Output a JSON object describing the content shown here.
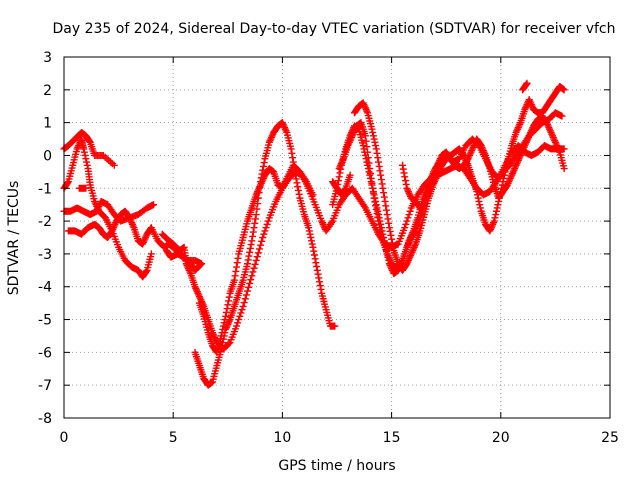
{
  "chart_data": {
    "type": "scatter",
    "title": "Day 235 of 2024, Sidereal Day-to-day VTEC variation (SDTVAR) for receiver vfch",
    "xlabel": "GPS time / hours",
    "ylabel": "SDTVAR / TECUs",
    "xlim": [
      0,
      25
    ],
    "ylim": [
      -8,
      3
    ],
    "xticks": [
      0,
      5,
      10,
      15,
      20,
      25
    ],
    "yticks": [
      -8,
      -7,
      -6,
      -5,
      -4,
      -3,
      -2,
      -1,
      0,
      1,
      2,
      3
    ],
    "grid": true,
    "marker": "plus",
    "color": "#ff0000",
    "tracks": [
      [
        [
          0.0,
          0.2
        ],
        [
          0.2,
          0.3
        ],
        [
          0.5,
          0.5
        ],
        [
          0.8,
          0.7
        ],
        [
          1.0,
          0.6
        ],
        [
          1.2,
          0.4
        ],
        [
          1.4,
          0.0
        ],
        [
          1.8,
          0.0
        ],
        [
          2.3,
          -0.3
        ]
      ],
      [
        [
          0.0,
          -1.0
        ],
        [
          0.2,
          -0.8
        ],
        [
          0.4,
          -0.3
        ],
        [
          0.6,
          0.2
        ],
        [
          0.8,
          0.5
        ],
        [
          0.9,
          0.2
        ],
        [
          1.1,
          -0.4
        ],
        [
          1.2,
          -0.9
        ],
        [
          1.4,
          -1.4
        ],
        [
          1.6,
          -1.7
        ],
        [
          1.9,
          -1.9
        ],
        [
          2.2,
          -2.3
        ],
        [
          2.5,
          -2.8
        ],
        [
          2.8,
          -3.2
        ],
        [
          3.1,
          -3.4
        ],
        [
          3.4,
          -3.5
        ],
        [
          3.6,
          -3.7
        ],
        [
          3.8,
          -3.5
        ],
        [
          4.0,
          -3.0
        ]
      ],
      [
        [
          0.0,
          -1.7
        ],
        [
          0.3,
          -1.7
        ],
        [
          0.6,
          -1.6
        ],
        [
          0.9,
          -1.7
        ],
        [
          1.2,
          -1.8
        ],
        [
          1.5,
          -1.7
        ],
        [
          1.7,
          -1.4
        ],
        [
          2.0,
          -1.5
        ],
        [
          2.3,
          -1.8
        ],
        [
          2.6,
          -2.0
        ],
        [
          3.0,
          -1.9
        ],
        [
          3.4,
          -1.8
        ],
        [
          3.8,
          -1.6
        ],
        [
          4.1,
          -1.5
        ]
      ],
      [
        [
          0.2,
          -2.3
        ],
        [
          0.5,
          -2.3
        ],
        [
          0.8,
          -2.4
        ],
        [
          1.1,
          -2.2
        ],
        [
          1.4,
          -2.1
        ],
        [
          1.6,
          -2.2
        ],
        [
          1.8,
          -2.4
        ],
        [
          2.0,
          -2.5
        ],
        [
          2.2,
          -2.3
        ],
        [
          2.4,
          -2.0
        ],
        [
          2.6,
          -1.8
        ],
        [
          2.8,
          -1.7
        ],
        [
          3.0,
          -1.9
        ],
        [
          3.2,
          -2.2
        ],
        [
          3.4,
          -2.6
        ],
        [
          3.6,
          -2.7
        ],
        [
          3.8,
          -2.4
        ],
        [
          4.0,
          -2.2
        ],
        [
          4.3,
          -2.6
        ],
        [
          4.6,
          -2.8
        ],
        [
          4.8,
          -2.7
        ],
        [
          5.0,
          -2.8
        ],
        [
          5.3,
          -3.0
        ],
        [
          5.6,
          -3.2
        ],
        [
          6.0,
          -3.2
        ],
        [
          6.3,
          -3.3
        ],
        [
          6.0,
          -3.5
        ],
        [
          5.8,
          -3.3
        ],
        [
          5.5,
          -3.1
        ],
        [
          5.2,
          -3.0
        ],
        [
          4.9,
          -3.1
        ],
        [
          4.7,
          -2.9
        ]
      ],
      [
        [
          4.5,
          -2.4
        ],
        [
          4.8,
          -2.6
        ],
        [
          5.0,
          -2.7
        ],
        [
          5.3,
          -2.9
        ],
        [
          5.5,
          -2.8
        ],
        [
          5.6,
          -3.3
        ],
        [
          5.8,
          -3.6
        ],
        [
          6.0,
          -4.0
        ],
        [
          6.2,
          -4.3
        ],
        [
          6.4,
          -4.6
        ],
        [
          6.6,
          -5.0
        ],
        [
          6.8,
          -5.4
        ],
        [
          7.0,
          -5.7
        ],
        [
          7.3,
          -5.9
        ],
        [
          7.6,
          -5.7
        ],
        [
          7.9,
          -5.2
        ],
        [
          8.2,
          -4.6
        ],
        [
          8.5,
          -3.9
        ],
        [
          8.8,
          -3.2
        ],
        [
          9.1,
          -2.5
        ],
        [
          9.4,
          -1.9
        ],
        [
          9.7,
          -1.4
        ],
        [
          10.0,
          -1.0
        ],
        [
          10.3,
          -0.7
        ],
        [
          10.6,
          -0.5
        ],
        [
          10.9,
          -0.6
        ],
        [
          11.2,
          -1.0
        ],
        [
          11.5,
          -1.5
        ],
        [
          11.8,
          -2.0
        ],
        [
          12.0,
          -2.3
        ],
        [
          12.3,
          -2.0
        ],
        [
          12.6,
          -1.5
        ],
        [
          12.9,
          -1.2
        ],
        [
          13.2,
          -1.0
        ],
        [
          13.5,
          -1.3
        ],
        [
          13.8,
          -1.6
        ],
        [
          14.1,
          -2.0
        ],
        [
          14.4,
          -2.4
        ],
        [
          14.7,
          -2.7
        ],
        [
          15.0,
          -2.8
        ],
        [
          15.3,
          -2.7
        ],
        [
          15.6,
          -2.2
        ],
        [
          15.9,
          -1.6
        ],
        [
          16.2,
          -1.2
        ],
        [
          16.5,
          -0.9
        ],
        [
          16.8,
          -0.7
        ],
        [
          17.1,
          -0.6
        ],
        [
          17.4,
          -0.5
        ],
        [
          17.7,
          -0.4
        ],
        [
          18.0,
          -0.3
        ],
        [
          18.3,
          -0.4
        ],
        [
          18.6,
          -0.7
        ],
        [
          18.9,
          -1.0
        ],
        [
          19.2,
          -1.2
        ],
        [
          19.5,
          -1.1
        ],
        [
          19.8,
          -0.8
        ],
        [
          20.1,
          -0.5
        ],
        [
          20.4,
          -0.3
        ],
        [
          20.7,
          0.0
        ],
        [
          21.0,
          0.3
        ],
        [
          21.3,
          0.6
        ],
        [
          21.6,
          0.8
        ],
        [
          21.9,
          1.0
        ],
        [
          22.2,
          1.1
        ],
        [
          22.5,
          1.3
        ],
        [
          22.8,
          1.2
        ]
      ],
      [
        [
          6.0,
          -6.0
        ],
        [
          6.2,
          -6.4
        ],
        [
          6.4,
          -6.8
        ],
        [
          6.6,
          -7.0
        ],
        [
          6.8,
          -6.9
        ],
        [
          7.0,
          -6.4
        ],
        [
          7.2,
          -5.9
        ],
        [
          7.4,
          -5.3
        ],
        [
          7.6,
          -5.0
        ],
        [
          7.8,
          -4.6
        ],
        [
          8.0,
          -4.2
        ],
        [
          8.2,
          -3.8
        ],
        [
          8.4,
          -3.3
        ],
        [
          8.6,
          -2.6
        ],
        [
          8.8,
          -1.8
        ],
        [
          9.0,
          -0.8
        ],
        [
          9.2,
          -0.1
        ],
        [
          9.4,
          0.4
        ],
        [
          9.6,
          0.7
        ],
        [
          9.8,
          0.9
        ],
        [
          10.0,
          1.0
        ],
        [
          10.2,
          0.7
        ],
        [
          10.4,
          0.2
        ],
        [
          10.6,
          -0.6
        ],
        [
          10.8,
          -1.3
        ],
        [
          11.0,
          -1.8
        ],
        [
          11.2,
          -2.2
        ],
        [
          11.4,
          -2.8
        ],
        [
          11.6,
          -3.5
        ],
        [
          11.8,
          -4.2
        ],
        [
          12.0,
          -4.7
        ],
        [
          12.2,
          -5.2
        ],
        [
          12.4,
          -5.2
        ]
      ],
      [
        [
          6.2,
          -4.5
        ],
        [
          6.4,
          -4.9
        ],
        [
          6.6,
          -5.4
        ],
        [
          6.8,
          -5.8
        ],
        [
          7.0,
          -6.0
        ],
        [
          7.2,
          -5.5
        ],
        [
          7.4,
          -4.9
        ],
        [
          7.6,
          -4.2
        ],
        [
          7.8,
          -3.8
        ],
        [
          8.0,
          -3.0
        ],
        [
          8.2,
          -2.5
        ],
        [
          8.4,
          -2.0
        ],
        [
          8.6,
          -1.6
        ],
        [
          8.8,
          -1.2
        ],
        [
          9.0,
          -0.9
        ],
        [
          9.2,
          -0.6
        ],
        [
          9.4,
          -0.4
        ],
        [
          9.6,
          -0.5
        ],
        [
          9.8,
          -0.9
        ],
        [
          10.0,
          -1.0
        ],
        [
          10.2,
          -0.7
        ],
        [
          10.5,
          -0.3
        ],
        [
          10.8,
          -0.5
        ],
        [
          11.1,
          -0.8
        ],
        [
          11.4,
          -1.2
        ]
      ],
      [
        [
          12.3,
          -1.5
        ],
        [
          12.5,
          -1.0
        ],
        [
          12.7,
          -0.3
        ],
        [
          12.9,
          0.2
        ],
        [
          13.1,
          0.6
        ],
        [
          13.3,
          0.9
        ],
        [
          13.5,
          0.8
        ],
        [
          13.7,
          0.3
        ],
        [
          13.9,
          -0.3
        ],
        [
          14.1,
          -0.9
        ],
        [
          14.3,
          -1.5
        ],
        [
          14.5,
          -2.1
        ],
        [
          14.7,
          -2.7
        ],
        [
          14.9,
          -3.3
        ],
        [
          15.1,
          -3.6
        ],
        [
          15.3,
          -3.5
        ],
        [
          15.5,
          -3.2
        ],
        [
          15.7,
          -2.8
        ],
        [
          15.9,
          -2.5
        ],
        [
          16.1,
          -2.3
        ],
        [
          16.3,
          -1.9
        ],
        [
          16.5,
          -1.5
        ],
        [
          16.7,
          -1.1
        ],
        [
          16.9,
          -0.8
        ],
        [
          17.1,
          -0.3
        ],
        [
          17.3,
          0.0
        ],
        [
          17.5,
          0.1
        ],
        [
          17.7,
          -0.1
        ],
        [
          17.9,
          -0.3
        ],
        [
          18.1,
          -0.4
        ],
        [
          18.3,
          -0.3
        ],
        [
          18.5,
          -0.1
        ],
        [
          18.7,
          0.2
        ],
        [
          18.9,
          0.5
        ],
        [
          19.1,
          0.3
        ],
        [
          19.3,
          0.0
        ],
        [
          19.5,
          -0.4
        ],
        [
          19.7,
          -0.9
        ],
        [
          19.9,
          -1.3
        ],
        [
          20.1,
          -1.1
        ],
        [
          20.3,
          -0.9
        ],
        [
          20.5,
          -0.6
        ],
        [
          20.7,
          -0.3
        ],
        [
          20.9,
          0.0
        ],
        [
          21.1,
          0.3
        ],
        [
          21.3,
          0.6
        ],
        [
          21.5,
          0.9
        ],
        [
          21.7,
          1.1
        ],
        [
          21.9,
          1.2
        ],
        [
          22.1,
          1.0
        ],
        [
          22.3,
          0.7
        ],
        [
          22.5,
          0.4
        ],
        [
          22.7,
          0.1
        ],
        [
          22.9,
          -0.4
        ]
      ],
      [
        [
          13.3,
          1.3
        ],
        [
          13.5,
          1.5
        ],
        [
          13.7,
          1.6
        ],
        [
          13.9,
          1.3
        ],
        [
          14.1,
          0.8
        ],
        [
          14.3,
          0.2
        ],
        [
          14.5,
          -0.6
        ],
        [
          14.7,
          -1.4
        ],
        [
          14.9,
          -2.2
        ],
        [
          15.1,
          -2.9
        ],
        [
          15.3,
          -3.3
        ],
        [
          15.5,
          -3.5
        ],
        [
          15.7,
          -3.3
        ],
        [
          15.9,
          -3.0
        ],
        [
          16.1,
          -2.7
        ],
        [
          16.3,
          -2.3
        ],
        [
          16.5,
          -1.8
        ],
        [
          16.7,
          -1.3
        ],
        [
          16.9,
          -0.9
        ],
        [
          17.1,
          -0.6
        ],
        [
          17.3,
          -0.3
        ],
        [
          17.5,
          -0.1
        ],
        [
          17.7,
          0.0
        ],
        [
          17.9,
          0.1
        ],
        [
          18.1,
          0.2
        ],
        [
          18.3,
          0.0
        ],
        [
          18.5,
          -0.3
        ],
        [
          18.7,
          -0.7
        ],
        [
          18.9,
          -1.1
        ],
        [
          19.1,
          -1.7
        ],
        [
          19.3,
          -2.1
        ],
        [
          19.5,
          -2.3
        ],
        [
          19.7,
          -2.0
        ],
        [
          19.9,
          -1.4
        ],
        [
          20.1,
          -0.8
        ],
        [
          20.3,
          -0.2
        ],
        [
          20.5,
          0.3
        ],
        [
          20.7,
          0.7
        ],
        [
          20.9,
          1.0
        ],
        [
          21.1,
          1.4
        ],
        [
          21.3,
          1.7
        ],
        [
          21.5,
          1.4
        ],
        [
          21.7,
          1.3
        ],
        [
          21.9,
          1.3
        ],
        [
          22.1,
          1.5
        ],
        [
          22.3,
          1.7
        ],
        [
          22.5,
          1.9
        ],
        [
          22.7,
          2.1
        ],
        [
          22.9,
          2.0
        ]
      ],
      [
        [
          12.6,
          -0.4
        ],
        [
          12.8,
          -0.1
        ],
        [
          13.0,
          0.3
        ],
        [
          13.2,
          0.6
        ],
        [
          13.4,
          0.9
        ],
        [
          13.6,
          1.0
        ],
        [
          13.8,
          0.6
        ],
        [
          14.0,
          -0.4
        ],
        [
          14.2,
          -1.3
        ],
        [
          14.4,
          -2.0
        ],
        [
          14.6,
          -2.6
        ],
        [
          14.8,
          -3.0
        ],
        [
          15.0,
          -3.3
        ],
        [
          15.2,
          -3.5
        ],
        [
          15.4,
          -3.4
        ],
        [
          15.6,
          -3.0
        ],
        [
          15.8,
          -2.6
        ],
        [
          16.0,
          -2.3
        ],
        [
          16.2,
          -1.9
        ],
        [
          16.4,
          -1.4
        ],
        [
          16.6,
          -1.0
        ],
        [
          16.8,
          -0.7
        ],
        [
          17.0,
          -0.4
        ],
        [
          17.2,
          -0.2
        ],
        [
          17.5,
          0.0
        ],
        [
          17.8,
          -0.2
        ],
        [
          18.1,
          -0.1
        ],
        [
          18.4,
          0.3
        ],
        [
          18.7,
          0.5
        ],
        [
          19.0,
          0.3
        ],
        [
          19.3,
          -0.1
        ],
        [
          19.6,
          -0.5
        ],
        [
          19.9,
          -0.7
        ],
        [
          20.2,
          -0.3
        ],
        [
          20.5,
          0.1
        ],
        [
          20.8,
          0.3
        ],
        [
          21.1,
          0.1
        ],
        [
          21.4,
          0.0
        ],
        [
          21.7,
          0.1
        ],
        [
          22.0,
          0.3
        ],
        [
          22.3,
          0.2
        ],
        [
          22.6,
          0.2
        ],
        [
          22.9,
          0.2
        ]
      ],
      [
        [
          15.5,
          -0.3
        ],
        [
          15.7,
          -1.0
        ],
        [
          15.9,
          -1.3
        ],
        [
          16.1,
          -1.4
        ],
        [
          16.3,
          -1.6
        ]
      ],
      [
        [
          12.3,
          -0.8
        ],
        [
          12.5,
          -1.0
        ],
        [
          12.7,
          -1.2
        ],
        [
          12.9,
          -1.0
        ],
        [
          13.1,
          -0.6
        ]
      ],
      [
        [
          0.7,
          -1.0
        ],
        [
          1.0,
          -1.0
        ]
      ],
      [
        [
          21.0,
          2.0
        ],
        [
          21.2,
          2.2
        ]
      ]
    ]
  }
}
